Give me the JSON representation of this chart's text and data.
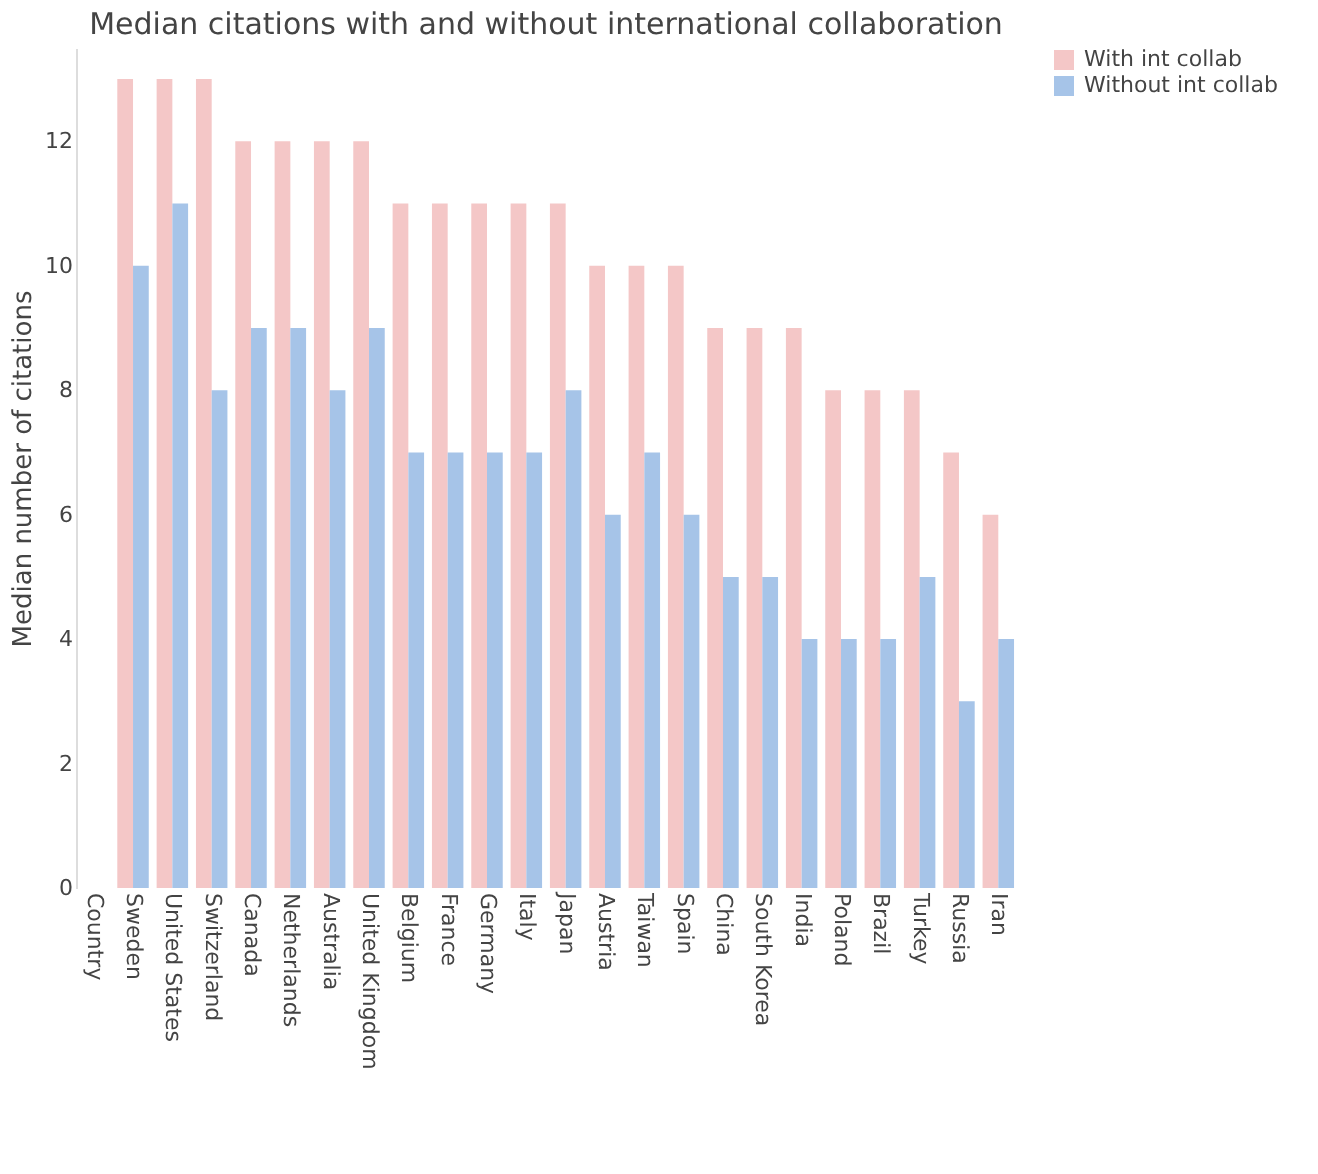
{
  "chart_data": {
    "type": "bar",
    "title": "Median citations with and without international collaboration",
    "ylabel": "Median number of citations",
    "categories": [
      "Country",
      "Sweden",
      "United States",
      "Switzerland",
      "Canada",
      "Netherlands",
      "Australia",
      "United Kingdom",
      "Belgium",
      "France",
      "Germany",
      "Italy",
      "Japan",
      "Austria",
      "Taiwan",
      "Spain",
      "China",
      "South Korea",
      "India",
      "Poland",
      "Brazil",
      "Turkey",
      "Russia",
      "Iran"
    ],
    "series": [
      {
        "name": "With int collab",
        "color": "#f4c7c7",
        "values": [
          null,
          13,
          13,
          13,
          12,
          12,
          12,
          12,
          11,
          11,
          11,
          11,
          11,
          10,
          10,
          10,
          9,
          9,
          9,
          8,
          8,
          8,
          7,
          6
        ]
      },
      {
        "name": "Without int collab",
        "color": "#a6c4e8",
        "values": [
          null,
          10,
          11,
          8,
          9,
          9,
          8,
          9,
          7,
          7,
          7,
          7,
          8,
          6,
          7,
          6,
          5,
          5,
          4,
          4,
          4,
          5,
          3,
          4
        ]
      }
    ],
    "ylim": [
      0,
      13.5
    ],
    "yticks": [
      0,
      2,
      4,
      6,
      8,
      10,
      12
    ],
    "grid": false,
    "legend": "top right"
  }
}
